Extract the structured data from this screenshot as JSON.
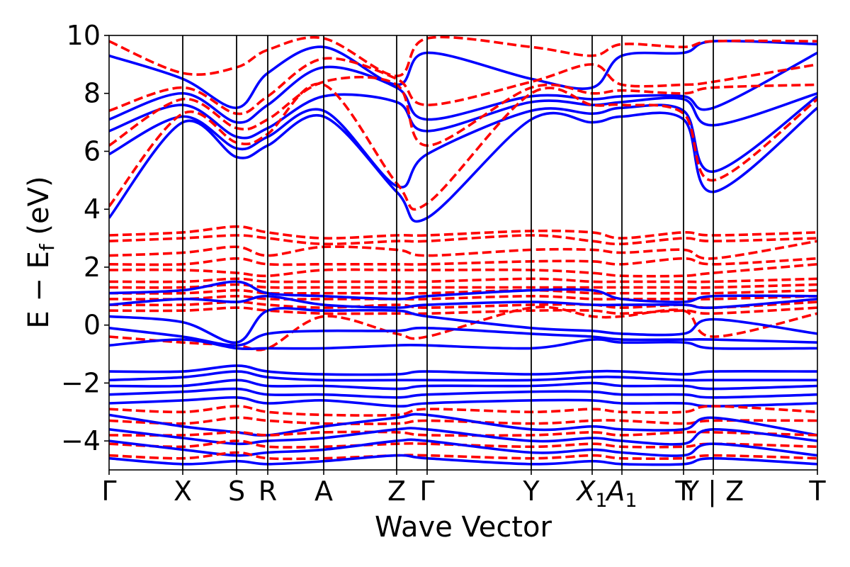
{
  "chart_data": {
    "type": "line",
    "title": "",
    "xlabel": "Wave Vector",
    "ylabel_parts": {
      "main": "E − E",
      "sub": "f",
      "unit": " (eV)"
    },
    "ylim": [
      -5,
      10
    ],
    "xlim": [
      0,
      10
    ],
    "grid": false,
    "legend": "none",
    "yticks": [
      -4,
      -2,
      0,
      2,
      4,
      6,
      8,
      10
    ],
    "ytick_labels": [
      "−4",
      "−2",
      "0",
      "2",
      "4",
      "6",
      "8",
      "10"
    ],
    "high_symmetry_points": [
      {
        "x": 0.0,
        "label": "Γ",
        "sub": ""
      },
      {
        "x": 1.04,
        "label": "X",
        "sub": ""
      },
      {
        "x": 1.8,
        "label": "S",
        "sub": ""
      },
      {
        "x": 2.24,
        "label": "R",
        "sub": ""
      },
      {
        "x": 3.03,
        "label": "A",
        "sub": ""
      },
      {
        "x": 4.06,
        "label": "Z",
        "sub": ""
      },
      {
        "x": 4.49,
        "label": "Γ",
        "sub": ""
      },
      {
        "x": 5.96,
        "label": "Y",
        "sub": ""
      },
      {
        "x": 6.82,
        "label": "X",
        "sub": "1"
      },
      {
        "x": 7.24,
        "label": "A",
        "sub": "1"
      },
      {
        "x": 8.11,
        "label": "T",
        "sub": ""
      },
      {
        "x": 8.53,
        "label": "Y | Z",
        "sub": ""
      },
      {
        "x": 10.0,
        "label": "T",
        "sub": ""
      }
    ],
    "series": [
      {
        "style": "solid",
        "color": "#0000ff",
        "y": [
          3.7,
          7.0,
          5.8,
          6.2,
          7.2,
          4.6,
          3.7,
          7.1,
          7.0,
          7.2,
          7.1,
          4.6,
          7.5
        ]
      },
      {
        "style": "solid",
        "color": "#0000ff",
        "y": [
          5.9,
          7.2,
          6.1,
          6.5,
          7.4,
          4.8,
          5.9,
          7.4,
          7.3,
          7.5,
          7.4,
          5.3,
          7.9
        ]
      },
      {
        "style": "solid",
        "color": "#0000ff",
        "y": [
          6.7,
          7.6,
          6.5,
          6.8,
          7.9,
          7.7,
          6.7,
          7.7,
          7.6,
          7.7,
          7.8,
          6.9,
          8.0
        ]
      },
      {
        "style": "solid",
        "color": "#0000ff",
        "y": [
          7.1,
          8.0,
          7.0,
          7.6,
          8.9,
          8.2,
          7.1,
          7.9,
          7.8,
          7.9,
          7.9,
          7.5,
          9.4
        ]
      },
      {
        "style": "solid",
        "color": "#0000ff",
        "y": [
          9.3,
          8.5,
          7.5,
          8.7,
          9.6,
          8.3,
          9.4,
          8.5,
          8.2,
          9.3,
          9.4,
          9.8,
          9.7
        ]
      },
      {
        "style": "dashed",
        "color": "#ff0000",
        "y": [
          4.1,
          7.3,
          6.3,
          6.6,
          8.3,
          4.9,
          4.2,
          8.0,
          7.6,
          7.6,
          7.3,
          5.0,
          7.8
        ]
      },
      {
        "style": "dashed",
        "color": "#ff0000",
        "y": [
          6.2,
          7.8,
          6.8,
          7.1,
          8.4,
          8.3,
          6.2,
          8.2,
          8.0,
          8.1,
          8.0,
          8.2,
          8.3
        ]
      },
      {
        "style": "dashed",
        "color": "#ff0000",
        "y": [
          7.4,
          8.2,
          7.3,
          7.9,
          9.2,
          8.5,
          7.6,
          8.4,
          9.0,
          8.3,
          8.3,
          8.4,
          9.0
        ]
      },
      {
        "style": "dashed",
        "color": "#ff0000",
        "y": [
          9.8,
          8.7,
          8.9,
          9.5,
          9.9,
          8.6,
          9.9,
          9.6,
          9.3,
          9.7,
          9.6,
          9.8,
          9.8
        ]
      },
      {
        "style": "dashed",
        "color": "#ff0000",
        "y": [
          3.1,
          3.2,
          3.4,
          3.2,
          3.0,
          3.1,
          3.1,
          3.25,
          3.2,
          3.0,
          3.2,
          3.1,
          3.2
        ]
      },
      {
        "style": "dashed",
        "color": "#ff0000",
        "y": [
          2.9,
          3.0,
          3.1,
          3.0,
          2.8,
          2.9,
          2.9,
          3.1,
          2.9,
          2.8,
          3.0,
          2.9,
          3.0
        ]
      },
      {
        "style": "dashed",
        "color": "#ff0000",
        "y": [
          2.4,
          2.5,
          2.7,
          2.4,
          2.7,
          2.6,
          2.4,
          2.6,
          2.6,
          2.5,
          2.6,
          2.3,
          2.9
        ]
      },
      {
        "style": "dashed",
        "color": "#ff0000",
        "y": [
          2.1,
          2.1,
          2.3,
          2.1,
          2.1,
          2.1,
          2.1,
          2.2,
          2.2,
          2.1,
          2.3,
          2.1,
          2.3
        ]
      },
      {
        "style": "dashed",
        "color": "#ff0000",
        "y": [
          1.9,
          1.9,
          1.8,
          1.7,
          1.9,
          1.9,
          1.9,
          1.9,
          1.8,
          1.7,
          1.7,
          1.8,
          2.1
        ]
      },
      {
        "style": "dashed",
        "color": "#ff0000",
        "y": [
          1.5,
          1.5,
          1.6,
          1.5,
          1.5,
          1.5,
          1.5,
          1.6,
          1.5,
          1.5,
          1.5,
          1.5,
          1.6
        ]
      },
      {
        "style": "dashed",
        "color": "#ff0000",
        "y": [
          1.3,
          1.3,
          1.4,
          1.3,
          1.3,
          1.3,
          1.3,
          1.3,
          1.3,
          1.3,
          1.3,
          1.3,
          1.4
        ]
      },
      {
        "style": "dashed",
        "color": "#ff0000",
        "y": [
          1.1,
          1.1,
          1.2,
          1.1,
          1.1,
          1.1,
          1.1,
          1.2,
          1.1,
          1.1,
          1.1,
          1.1,
          1.2
        ]
      },
      {
        "style": "dashed",
        "color": "#ff0000",
        "y": [
          0.9,
          0.9,
          1.0,
          0.9,
          0.9,
          0.9,
          0.9,
          1.0,
          0.9,
          0.9,
          0.9,
          0.9,
          1.0
        ]
      },
      {
        "style": "dashed",
        "color": "#ff0000",
        "y": [
          0.7,
          0.7,
          0.8,
          0.7,
          0.6,
          0.7,
          0.6,
          0.7,
          0.7,
          0.6,
          0.7,
          0.6,
          0.8
        ]
      },
      {
        "style": "dashed",
        "color": "#ff0000",
        "y": [
          0.5,
          0.5,
          0.6,
          0.5,
          0.4,
          0.4,
          0.4,
          0.5,
          0.5,
          0.4,
          0.5,
          0.4,
          0.6
        ]
      },
      {
        "style": "dashed",
        "color": "#ff0000",
        "y": [
          -0.4,
          -0.6,
          -0.7,
          -0.8,
          0.3,
          -0.3,
          -0.4,
          0.6,
          0.3,
          0.3,
          0.5,
          -0.4,
          0.4
        ]
      },
      {
        "style": "solid",
        "color": "#0000ff",
        "y": [
          1.1,
          1.2,
          1.5,
          1.1,
          1.0,
          0.9,
          1.0,
          1.2,
          1.2,
          0.9,
          0.8,
          1.0,
          1.0
        ]
      },
      {
        "style": "solid",
        "color": "#0000ff",
        "y": [
          0.7,
          0.9,
          0.8,
          1.0,
          0.7,
          0.6,
          0.7,
          0.8,
          0.7,
          0.7,
          0.7,
          0.6,
          0.9
        ]
      },
      {
        "style": "solid",
        "color": "#0000ff",
        "y": [
          0.3,
          0.1,
          -0.6,
          0.5,
          0.5,
          0.5,
          0.3,
          -0.1,
          -0.2,
          -0.3,
          -0.3,
          0.2,
          -0.3
        ]
      },
      {
        "style": "solid",
        "color": "#0000ff",
        "y": [
          -0.1,
          -0.4,
          -0.7,
          -0.3,
          -0.2,
          -0.2,
          -0.1,
          -0.3,
          -0.4,
          -0.5,
          -0.5,
          -0.5,
          -0.6
        ]
      },
      {
        "style": "solid",
        "color": "#0000ff",
        "y": [
          -0.7,
          -0.5,
          -0.8,
          -0.8,
          -0.8,
          -0.7,
          -0.7,
          -0.8,
          -0.5,
          -0.6,
          -0.6,
          -0.8,
          -0.8
        ]
      },
      {
        "style": "solid",
        "color": "#0000ff",
        "y": [
          -1.6,
          -1.6,
          -1.4,
          -1.6,
          -1.7,
          -1.7,
          -1.6,
          -1.7,
          -1.6,
          -1.6,
          -1.7,
          -1.6,
          -1.6
        ]
      },
      {
        "style": "solid",
        "color": "#0000ff",
        "y": [
          -1.9,
          -1.8,
          -1.6,
          -1.8,
          -1.9,
          -1.9,
          -1.9,
          -1.9,
          -1.8,
          -1.8,
          -1.9,
          -1.9,
          -1.9
        ]
      },
      {
        "style": "solid",
        "color": "#0000ff",
        "y": [
          -2.1,
          -2.1,
          -1.9,
          -2.1,
          -2.1,
          -2.2,
          -2.1,
          -2.1,
          -2.0,
          -2.1,
          -2.1,
          -2.2,
          -2.1
        ]
      },
      {
        "style": "solid",
        "color": "#0000ff",
        "y": [
          -2.4,
          -2.3,
          -2.2,
          -2.4,
          -2.4,
          -2.5,
          -2.4,
          -2.3,
          -2.3,
          -2.4,
          -2.4,
          -2.5,
          -2.4
        ]
      },
      {
        "style": "solid",
        "color": "#0000ff",
        "y": [
          -2.7,
          -2.6,
          -2.5,
          -2.7,
          -2.6,
          -2.8,
          -2.7,
          -2.6,
          -2.6,
          -2.7,
          -2.7,
          -2.8,
          -2.7
        ]
      },
      {
        "style": "dashed",
        "color": "#ff0000",
        "y": [
          -2.9,
          -3.0,
          -2.8,
          -3.0,
          -3.1,
          -3.1,
          -2.9,
          -3.0,
          -2.9,
          -3.0,
          -3.0,
          -2.8,
          -3.0
        ]
      },
      {
        "style": "dashed",
        "color": "#ff0000",
        "y": [
          -3.3,
          -3.4,
          -3.2,
          -3.3,
          -3.4,
          -3.4,
          -3.3,
          -3.4,
          -3.3,
          -3.3,
          -3.4,
          -3.3,
          -3.3
        ]
      },
      {
        "style": "solid",
        "color": "#0000ff",
        "y": [
          -3.1,
          -3.5,
          -3.7,
          -3.8,
          -3.5,
          -3.2,
          -3.1,
          -3.6,
          -3.5,
          -3.6,
          -3.6,
          -3.2,
          -3.8
        ]
      },
      {
        "style": "dashed",
        "color": "#ff0000",
        "y": [
          -3.8,
          -3.8,
          -3.7,
          -3.8,
          -3.7,
          -3.7,
          -3.8,
          -3.8,
          -3.7,
          -3.8,
          -3.7,
          -3.7,
          -3.8
        ]
      },
      {
        "style": "solid",
        "color": "#0000ff",
        "y": [
          -3.6,
          -3.9,
          -4.1,
          -4.0,
          -3.9,
          -3.6,
          -3.6,
          -4.0,
          -3.9,
          -4.0,
          -4.1,
          -3.6,
          -4.0
        ]
      },
      {
        "style": "dashed",
        "color": "#ff0000",
        "y": [
          -4.1,
          -4.2,
          -4.0,
          -4.2,
          -4.2,
          -4.1,
          -4.1,
          -4.2,
          -4.1,
          -4.2,
          -4.2,
          -4.1,
          -4.2
        ]
      },
      {
        "style": "solid",
        "color": "#0000ff",
        "y": [
          -4.0,
          -4.3,
          -4.5,
          -4.4,
          -4.3,
          -4.0,
          -4.0,
          -4.4,
          -4.3,
          -4.4,
          -4.5,
          -4.1,
          -4.5
        ]
      },
      {
        "style": "dashed",
        "color": "#ff0000",
        "y": [
          -4.5,
          -4.6,
          -4.4,
          -4.6,
          -4.6,
          -4.5,
          -4.5,
          -4.6,
          -4.5,
          -4.6,
          -4.6,
          -4.5,
          -4.6
        ]
      },
      {
        "style": "solid",
        "color": "#0000ff",
        "y": [
          -4.6,
          -4.8,
          -4.7,
          -4.8,
          -4.7,
          -4.5,
          -4.6,
          -4.8,
          -4.7,
          -4.8,
          -4.8,
          -4.6,
          -4.8
        ]
      }
    ]
  }
}
